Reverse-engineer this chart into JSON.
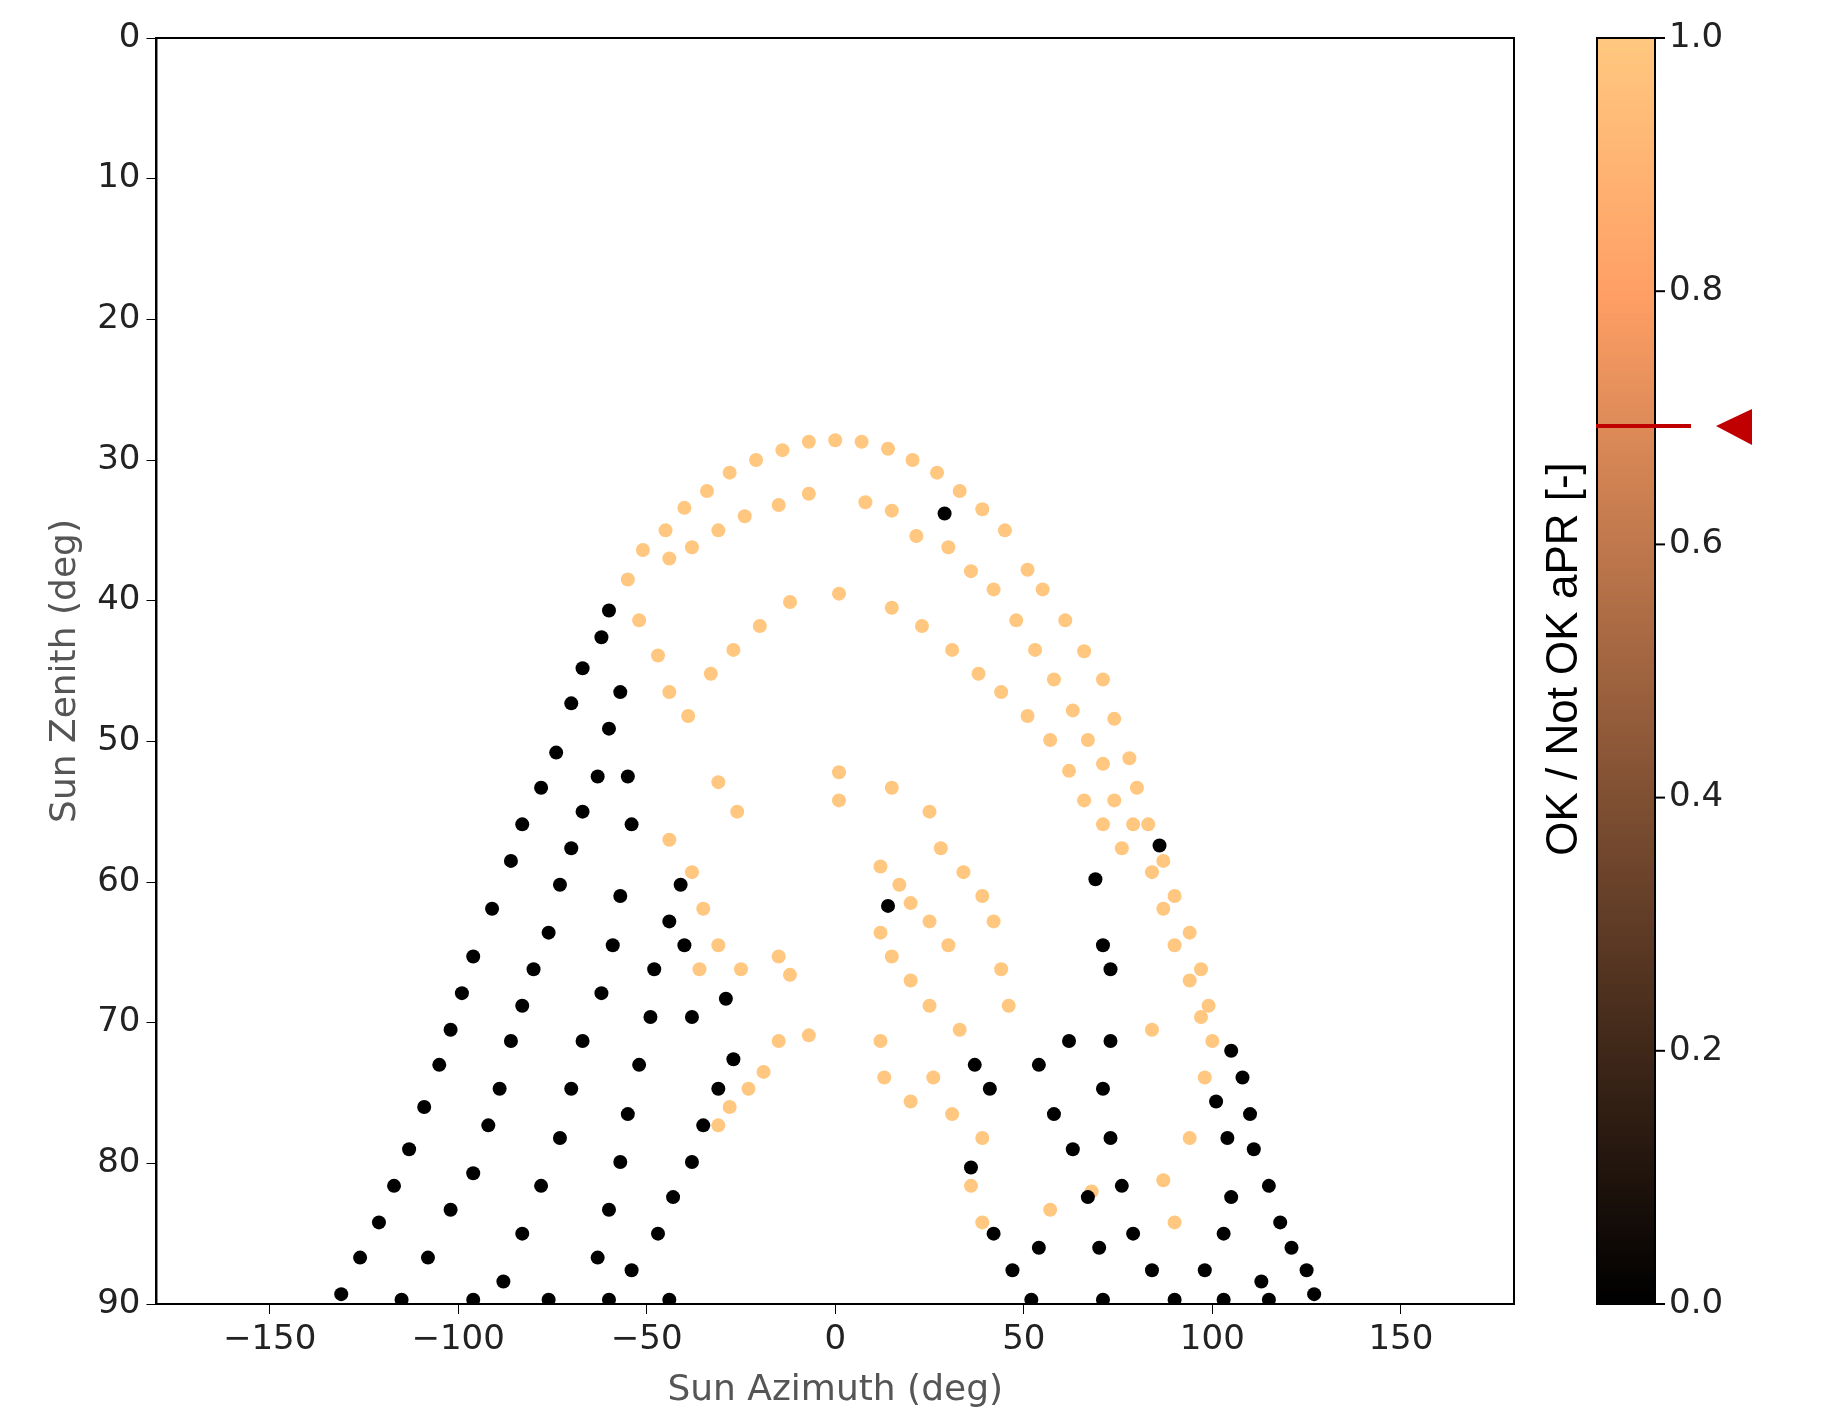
{
  "chart_data": {
    "type": "scatter",
    "xlabel": "Sun Azimuth (deg)",
    "ylabel": "Sun Zenith (deg)",
    "clabel": "OK / Not OK aPR [-]",
    "xlim": [
      -180,
      180
    ],
    "ylim": [
      90,
      0
    ],
    "xticks": [
      {
        "value": -150,
        "label": "−150"
      },
      {
        "value": -100,
        "label": "−100"
      },
      {
        "value": -50,
        "label": "−50"
      },
      0,
      50,
      100,
      150
    ],
    "yticks": [
      0,
      10,
      20,
      30,
      40,
      50,
      60,
      70,
      80,
      90
    ],
    "clim": [
      0,
      1
    ],
    "cticks": [
      {
        "value": 0,
        "label": "0.0"
      },
      {
        "value": 0.2,
        "label": "0.2"
      },
      {
        "value": 0.4,
        "label": "0.4"
      },
      {
        "value": 0.6,
        "label": "0.6"
      },
      {
        "value": 0.8,
        "label": "0.8"
      },
      {
        "value": 1,
        "label": "1.0"
      }
    ],
    "grid": false,
    "legend": false,
    "marker": "circle",
    "series": [
      {
        "x": [
          -55,
          -51,
          -45,
          -40,
          -34,
          -28,
          -21,
          -14,
          -7,
          0,
          7,
          14,
          20.5,
          27,
          33,
          39,
          45,
          51,
          55,
          61,
          66,
          71,
          74,
          78,
          80,
          83,
          87,
          90,
          94,
          97,
          99,
          100,
          98,
          -44,
          -38,
          -31,
          -24,
          -15,
          -7,
          8,
          15,
          21.5,
          30,
          36,
          42,
          48,
          53,
          58,
          63,
          67,
          71,
          74,
          79,
          84,
          87,
          90,
          94,
          97,
          -52,
          -47,
          -44,
          -39,
          -33,
          -27,
          -20,
          -12,
          1,
          15,
          23,
          31,
          38,
          44,
          51,
          57,
          62,
          66,
          71,
          76,
          -31,
          -26,
          -44,
          -38,
          -35,
          -31,
          -36,
          -25,
          -15,
          -12,
          1,
          1,
          15,
          25,
          28,
          34,
          39,
          12,
          17,
          20,
          25,
          30,
          12,
          15,
          20,
          25,
          33,
          42,
          44,
          46,
          12,
          13,
          20,
          26,
          31,
          39,
          -15,
          -19,
          -23,
          -28,
          -31,
          -7,
          36,
          39,
          57,
          68,
          87,
          90,
          94,
          84,
          -131,
          -126,
          -121,
          -117,
          -113,
          -109,
          -105,
          -102,
          -99,
          -96,
          -91,
          -86,
          -83,
          -78,
          -74,
          -70,
          -67,
          -62,
          -60,
          -108,
          -102,
          -96,
          -92,
          -89,
          -86,
          -83,
          -80,
          -76,
          -73,
          -70,
          -67,
          -63,
          -60,
          -57,
          -88,
          -83,
          -78,
          -73,
          -70,
          -67,
          -62,
          -59,
          -57,
          -54,
          -55,
          -63,
          -60,
          -57,
          -55,
          -52,
          -49,
          -48,
          -44,
          -41,
          -54,
          -47,
          -43,
          -38,
          -35,
          -31,
          -27,
          -40,
          -38,
          -96,
          -76,
          -115,
          -60,
          -44,
          -29,
          14,
          29,
          37,
          41,
          36,
          42,
          47,
          54,
          54,
          58,
          62,
          63,
          67,
          70,
          71,
          73,
          76,
          79,
          84,
          69,
          71,
          73,
          73,
          86,
          105,
          108,
          110,
          111,
          115,
          118,
          121,
          125,
          127,
          104,
          105,
          103,
          98,
          113,
          101,
          90,
          103,
          115,
          71,
          52
        ],
        "values": [
          38.5,
          36.4,
          35,
          33.4,
          32.2,
          30.9,
          30,
          29.3,
          28.7,
          28.6,
          28.7,
          29.2,
          30,
          30.9,
          32.2,
          33.5,
          35,
          37.8,
          39.2,
          41.4,
          43.6,
          45.6,
          48.4,
          51.2,
          53.3,
          55.9,
          58.5,
          61,
          63.6,
          66.2,
          68.8,
          71.3,
          73.9,
          37,
          36.2,
          35,
          34,
          33.2,
          32.4,
          33,
          33.6,
          35.4,
          36.2,
          37.9,
          39.2,
          41.4,
          43.5,
          45.6,
          47.8,
          49.9,
          51.6,
          54.2,
          55.9,
          59.3,
          61.9,
          64.5,
          67,
          69.6,
          41.4,
          43.9,
          46.5,
          48.2,
          45.2,
          43.5,
          41.8,
          40.1,
          39.5,
          40.5,
          41.8,
          43.5,
          45.2,
          46.5,
          48.2,
          49.9,
          52.1,
          54.2,
          55.9,
          57.6,
          52.9,
          55,
          57,
          59.3,
          61.9,
          64.5,
          66.2,
          66.2,
          65.3,
          66.6,
          52.2,
          54.2,
          53.3,
          55,
          57.6,
          59.3,
          61,
          58.9,
          60.2,
          61.5,
          62.8,
          64.5,
          63.6,
          65.3,
          67,
          68.8,
          70.5,
          62.8,
          66.2,
          68.8,
          71.3,
          73.9,
          75.6,
          73.9,
          76.5,
          78.2,
          71.3,
          73.5,
          74.7,
          76,
          77.3,
          70.9,
          81.6,
          84.2,
          83.3,
          82,
          81.2,
          84.2,
          78.2,
          70.5,
          89.3,
          86.7,
          84.2,
          81.6,
          79,
          76,
          73,
          70.5,
          67.9,
          65.3,
          61.9,
          58.5,
          55.9,
          53.3,
          50.8,
          47.3,
          44.8,
          42.6,
          40.7,
          86.7,
          83.3,
          80.7,
          77.3,
          74.7,
          71.3,
          68.8,
          66.2,
          63.6,
          60.2,
          57.6,
          55,
          52.5,
          49.1,
          46.5,
          88.4,
          85,
          81.6,
          78.2,
          74.7,
          71.3,
          67.9,
          64.5,
          61,
          55.9,
          52.5,
          86.7,
          83.3,
          79.9,
          76.5,
          73,
          69.6,
          66.2,
          62.8,
          60.2,
          87.6,
          85,
          82.4,
          79.9,
          77.3,
          74.7,
          72.6,
          64.5,
          69.6,
          89.7,
          89.7,
          89.7,
          89.7,
          89.7,
          68.3,
          61.7,
          33.8,
          73,
          74.7,
          80.3,
          85,
          87.6,
          86,
          73,
          76.5,
          71.3,
          79,
          82.4,
          86,
          74.7,
          78.2,
          81.6,
          85,
          87.6,
          59.8,
          64.5,
          66.2,
          71.3,
          57.4,
          72,
          73.9,
          76.5,
          79,
          81.6,
          84.2,
          86,
          87.6,
          89.3,
          78.2,
          82.4,
          85,
          87.6,
          88.4,
          75.6,
          89.7,
          89.7,
          89.7,
          89.7,
          89.7
        ],
        "cvalues": [
          1,
          1,
          1,
          1,
          1,
          1,
          1,
          1,
          1,
          1,
          1,
          1,
          1,
          1,
          1,
          1,
          1,
          1,
          1,
          1,
          1,
          1,
          1,
          1,
          1,
          1,
          1,
          1,
          1,
          1,
          1,
          1,
          1,
          1,
          1,
          1,
          1,
          1,
          1,
          1,
          1,
          1,
          1,
          1,
          1,
          1,
          1,
          1,
          1,
          1,
          1,
          1,
          1,
          1,
          1,
          1,
          1,
          1,
          1,
          1,
          1,
          1,
          1,
          1,
          1,
          1,
          1,
          1,
          1,
          1,
          1,
          1,
          1,
          1,
          1,
          1,
          1,
          1,
          1,
          1,
          1,
          1,
          1,
          1,
          1,
          1,
          1,
          1,
          1,
          1,
          1,
          1,
          1,
          1,
          1,
          1,
          1,
          1,
          1,
          1,
          1,
          1,
          1,
          1,
          1,
          1,
          1,
          1,
          1,
          1,
          1,
          1,
          1,
          1,
          1,
          1,
          1,
          1,
          1,
          1,
          1,
          1,
          1,
          1,
          1,
          1,
          1,
          1,
          0,
          0,
          0,
          0,
          0,
          0,
          0,
          0,
          0,
          0,
          0,
          0,
          0,
          0,
          0,
          0,
          0,
          0,
          0,
          0,
          0,
          0,
          0,
          0,
          0,
          0,
          0,
          0,
          0,
          0,
          0,
          0,
          0,
          0,
          0,
          0,
          0,
          0,
          0,
          0,
          0,
          0,
          0,
          0,
          0,
          0,
          0,
          0,
          0,
          0,
          0,
          0,
          0,
          0,
          0,
          0,
          0,
          0,
          0,
          0,
          0,
          0,
          0,
          0,
          0,
          0,
          0,
          0,
          0,
          0,
          0,
          0,
          0,
          0,
          0,
          0,
          0,
          0,
          0,
          0,
          0,
          0,
          0,
          0,
          0,
          0,
          0,
          0,
          0,
          0,
          0,
          0,
          0,
          0,
          0,
          0,
          0,
          0,
          0,
          0,
          0,
          0,
          0,
          0,
          0,
          0,
          0,
          0,
          0,
          0,
          0,
          0,
          0
        ]
      }
    ]
  }
}
